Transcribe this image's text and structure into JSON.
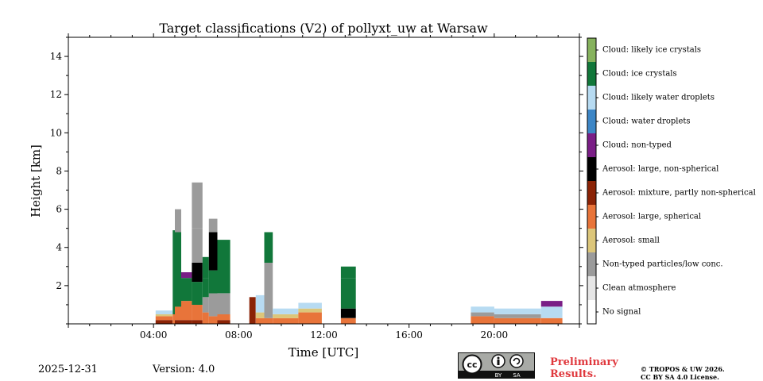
{
  "chart_data": {
    "type": "heatmap",
    "title": "Target classifications (V2) of pollyxt_uw at Warsaw",
    "xlabel": "Time [UTC]",
    "ylabel": "Height [km]",
    "xlim_hours": [
      0,
      24
    ],
    "ylim_km": [
      0,
      15
    ],
    "x_ticks": [
      {
        "value": 4,
        "label": "04:00"
      },
      {
        "value": 8,
        "label": "08:00"
      },
      {
        "value": 12,
        "label": "12:00"
      },
      {
        "value": 16,
        "label": "16:00"
      },
      {
        "value": 20,
        "label": "20:00"
      }
    ],
    "y_ticks": [
      {
        "value": 2,
        "label": "2"
      },
      {
        "value": 4,
        "label": "4"
      },
      {
        "value": 6,
        "label": "6"
      },
      {
        "value": 8,
        "label": "8"
      },
      {
        "value": 10,
        "label": "10"
      },
      {
        "value": 12,
        "label": "12"
      },
      {
        "value": 14,
        "label": "14"
      }
    ],
    "classes": [
      {
        "id": 0,
        "label": "No signal",
        "color": "#ffffff"
      },
      {
        "id": 1,
        "label": "Clean atmosphere",
        "color": "#e6e6e6"
      },
      {
        "id": 2,
        "label": "Non-typed particles/low conc.",
        "color": "#9b9b9b"
      },
      {
        "id": 3,
        "label": "Aerosol: small",
        "color": "#dcc67a"
      },
      {
        "id": 4,
        "label": "Aerosol: large, spherical",
        "color": "#e8743a"
      },
      {
        "id": 5,
        "label": "Aerosol: mixture, partly non-spherical",
        "color": "#8b2306"
      },
      {
        "id": 6,
        "label": "Aerosol: large, non-spherical",
        "color": "#000000"
      },
      {
        "id": 7,
        "label": "Cloud: non-typed",
        "color": "#7a1e86"
      },
      {
        "id": 8,
        "label": "Cloud: water droplets",
        "color": "#3d86c6"
      },
      {
        "id": 9,
        "label": "Cloud: likely water droplets",
        "color": "#b7dbf2"
      },
      {
        "id": 10,
        "label": "Cloud: ice crystals",
        "color": "#11773a"
      },
      {
        "id": 11,
        "label": "Cloud: likely ice crystals",
        "color": "#86b25d"
      }
    ],
    "segments": [
      {
        "t0": 4.1,
        "t1": 4.9,
        "layers": [
          {
            "cls": 5,
            "h0": 0,
            "h1": 0.2
          },
          {
            "cls": 4,
            "h0": 0.2,
            "h1": 0.4
          },
          {
            "cls": 3,
            "h0": 0.4,
            "h1": 0.5
          },
          {
            "cls": 9,
            "h0": 0.5,
            "h1": 0.7
          }
        ]
      },
      {
        "t0": 4.9,
        "t1": 5.0,
        "layers": [
          {
            "cls": 4,
            "h0": 0,
            "h1": 0.5
          },
          {
            "cls": 10,
            "h0": 0.5,
            "h1": 4.9
          }
        ]
      },
      {
        "t0": 5.0,
        "t1": 5.3,
        "layers": [
          {
            "cls": 5,
            "h0": 0,
            "h1": 0.2
          },
          {
            "cls": 4,
            "h0": 0.2,
            "h1": 0.9
          },
          {
            "cls": 10,
            "h0": 0.9,
            "h1": 4.8
          },
          {
            "cls": 2,
            "h0": 4.8,
            "h1": 6.0
          }
        ]
      },
      {
        "t0": 5.3,
        "t1": 5.8,
        "layers": [
          {
            "cls": 5,
            "h0": 0,
            "h1": 0.2
          },
          {
            "cls": 4,
            "h0": 0.2,
            "h1": 1.2
          },
          {
            "cls": 10,
            "h0": 1.2,
            "h1": 2.4
          },
          {
            "cls": 7,
            "h0": 2.4,
            "h1": 2.7
          }
        ]
      },
      {
        "t0": 5.8,
        "t1": 6.3,
        "layers": [
          {
            "cls": 5,
            "h0": 0,
            "h1": 0.2
          },
          {
            "cls": 4,
            "h0": 0.2,
            "h1": 1.0
          },
          {
            "cls": 10,
            "h0": 1.0,
            "h1": 2.2
          },
          {
            "cls": 6,
            "h0": 2.2,
            "h1": 3.2
          },
          {
            "cls": 2,
            "h0": 3.2,
            "h1": 5.0
          },
          {
            "cls": 2,
            "h0": 5.0,
            "h1": 7.4
          }
        ]
      },
      {
        "t0": 6.3,
        "t1": 6.6,
        "layers": [
          {
            "cls": 4,
            "h0": 0,
            "h1": 0.6
          },
          {
            "cls": 2,
            "h0": 0.6,
            "h1": 1.4
          },
          {
            "cls": 10,
            "h0": 1.4,
            "h1": 2.4
          },
          {
            "cls": 10,
            "h0": 2.4,
            "h1": 3.5
          }
        ]
      },
      {
        "t0": 6.6,
        "t1": 7.0,
        "layers": [
          {
            "cls": 4,
            "h0": 0,
            "h1": 0.4
          },
          {
            "cls": 2,
            "h0": 0.4,
            "h1": 1.6
          },
          {
            "cls": 10,
            "h0": 1.6,
            "h1": 2.8
          },
          {
            "cls": 6,
            "h0": 2.8,
            "h1": 4.8
          },
          {
            "cls": 2,
            "h0": 4.8,
            "h1": 5.5
          }
        ]
      },
      {
        "t0": 7.0,
        "t1": 7.6,
        "layers": [
          {
            "cls": 5,
            "h0": 0,
            "h1": 0.2
          },
          {
            "cls": 4,
            "h0": 0.2,
            "h1": 0.5
          },
          {
            "cls": 2,
            "h0": 0.5,
            "h1": 1.6
          },
          {
            "cls": 10,
            "h0": 1.6,
            "h1": 3.8
          },
          {
            "cls": 10,
            "h0": 3.8,
            "h1": 4.4
          }
        ]
      },
      {
        "t0": 8.5,
        "t1": 8.8,
        "layers": [
          {
            "cls": 5,
            "h0": 0,
            "h1": 1.4
          }
        ]
      },
      {
        "t0": 8.8,
        "t1": 9.2,
        "layers": [
          {
            "cls": 4,
            "h0": 0,
            "h1": 0.3
          },
          {
            "cls": 3,
            "h0": 0.3,
            "h1": 0.6
          },
          {
            "cls": 9,
            "h0": 0.6,
            "h1": 1.5
          }
        ]
      },
      {
        "t0": 9.2,
        "t1": 9.6,
        "layers": [
          {
            "cls": 4,
            "h0": 0,
            "h1": 0.3
          },
          {
            "cls": 2,
            "h0": 0.3,
            "h1": 3.2
          },
          {
            "cls": 10,
            "h0": 3.2,
            "h1": 4.8
          }
        ]
      },
      {
        "t0": 9.6,
        "t1": 10.8,
        "layers": [
          {
            "cls": 4,
            "h0": 0,
            "h1": 0.3
          },
          {
            "cls": 3,
            "h0": 0.3,
            "h1": 0.5
          },
          {
            "cls": 9,
            "h0": 0.5,
            "h1": 0.8
          }
        ]
      },
      {
        "t0": 10.8,
        "t1": 11.9,
        "layers": [
          {
            "cls": 4,
            "h0": 0,
            "h1": 0.6
          },
          {
            "cls": 3,
            "h0": 0.6,
            "h1": 0.8
          },
          {
            "cls": 9,
            "h0": 0.8,
            "h1": 1.1
          }
        ]
      },
      {
        "t0": 12.8,
        "t1": 13.5,
        "layers": [
          {
            "cls": 4,
            "h0": 0,
            "h1": 0.3
          },
          {
            "cls": 6,
            "h0": 0.3,
            "h1": 0.8
          },
          {
            "cls": 10,
            "h0": 0.8,
            "h1": 2.4
          },
          {
            "cls": 10,
            "h0": 2.4,
            "h1": 3.0
          }
        ]
      },
      {
        "t0": 18.9,
        "t1": 20.0,
        "layers": [
          {
            "cls": 4,
            "h0": 0,
            "h1": 0.4
          },
          {
            "cls": 2,
            "h0": 0.4,
            "h1": 0.6
          },
          {
            "cls": 9,
            "h0": 0.6,
            "h1": 0.9
          }
        ]
      },
      {
        "t0": 20.0,
        "t1": 22.2,
        "layers": [
          {
            "cls": 4,
            "h0": 0,
            "h1": 0.3
          },
          {
            "cls": 2,
            "h0": 0.3,
            "h1": 0.5
          },
          {
            "cls": 9,
            "h0": 0.5,
            "h1": 0.8
          }
        ]
      },
      {
        "t0": 22.2,
        "t1": 23.2,
        "layers": [
          {
            "cls": 4,
            "h0": 0,
            "h1": 0.3
          },
          {
            "cls": 9,
            "h0": 0.3,
            "h1": 0.9
          },
          {
            "cls": 7,
            "h0": 0.9,
            "h1": 1.2
          }
        ]
      }
    ]
  },
  "footer": {
    "date": "2025-12-31",
    "version": "Version: 4.0",
    "cc_symbol": "cc",
    "cc_by": "BY",
    "cc_sa": "SA",
    "preliminary_line1": "Preliminary",
    "preliminary_line2": "Results.",
    "copyright_line1": "© TROPOS & UW 2026.",
    "copyright_line2": "CC BY SA 4.0 License."
  }
}
